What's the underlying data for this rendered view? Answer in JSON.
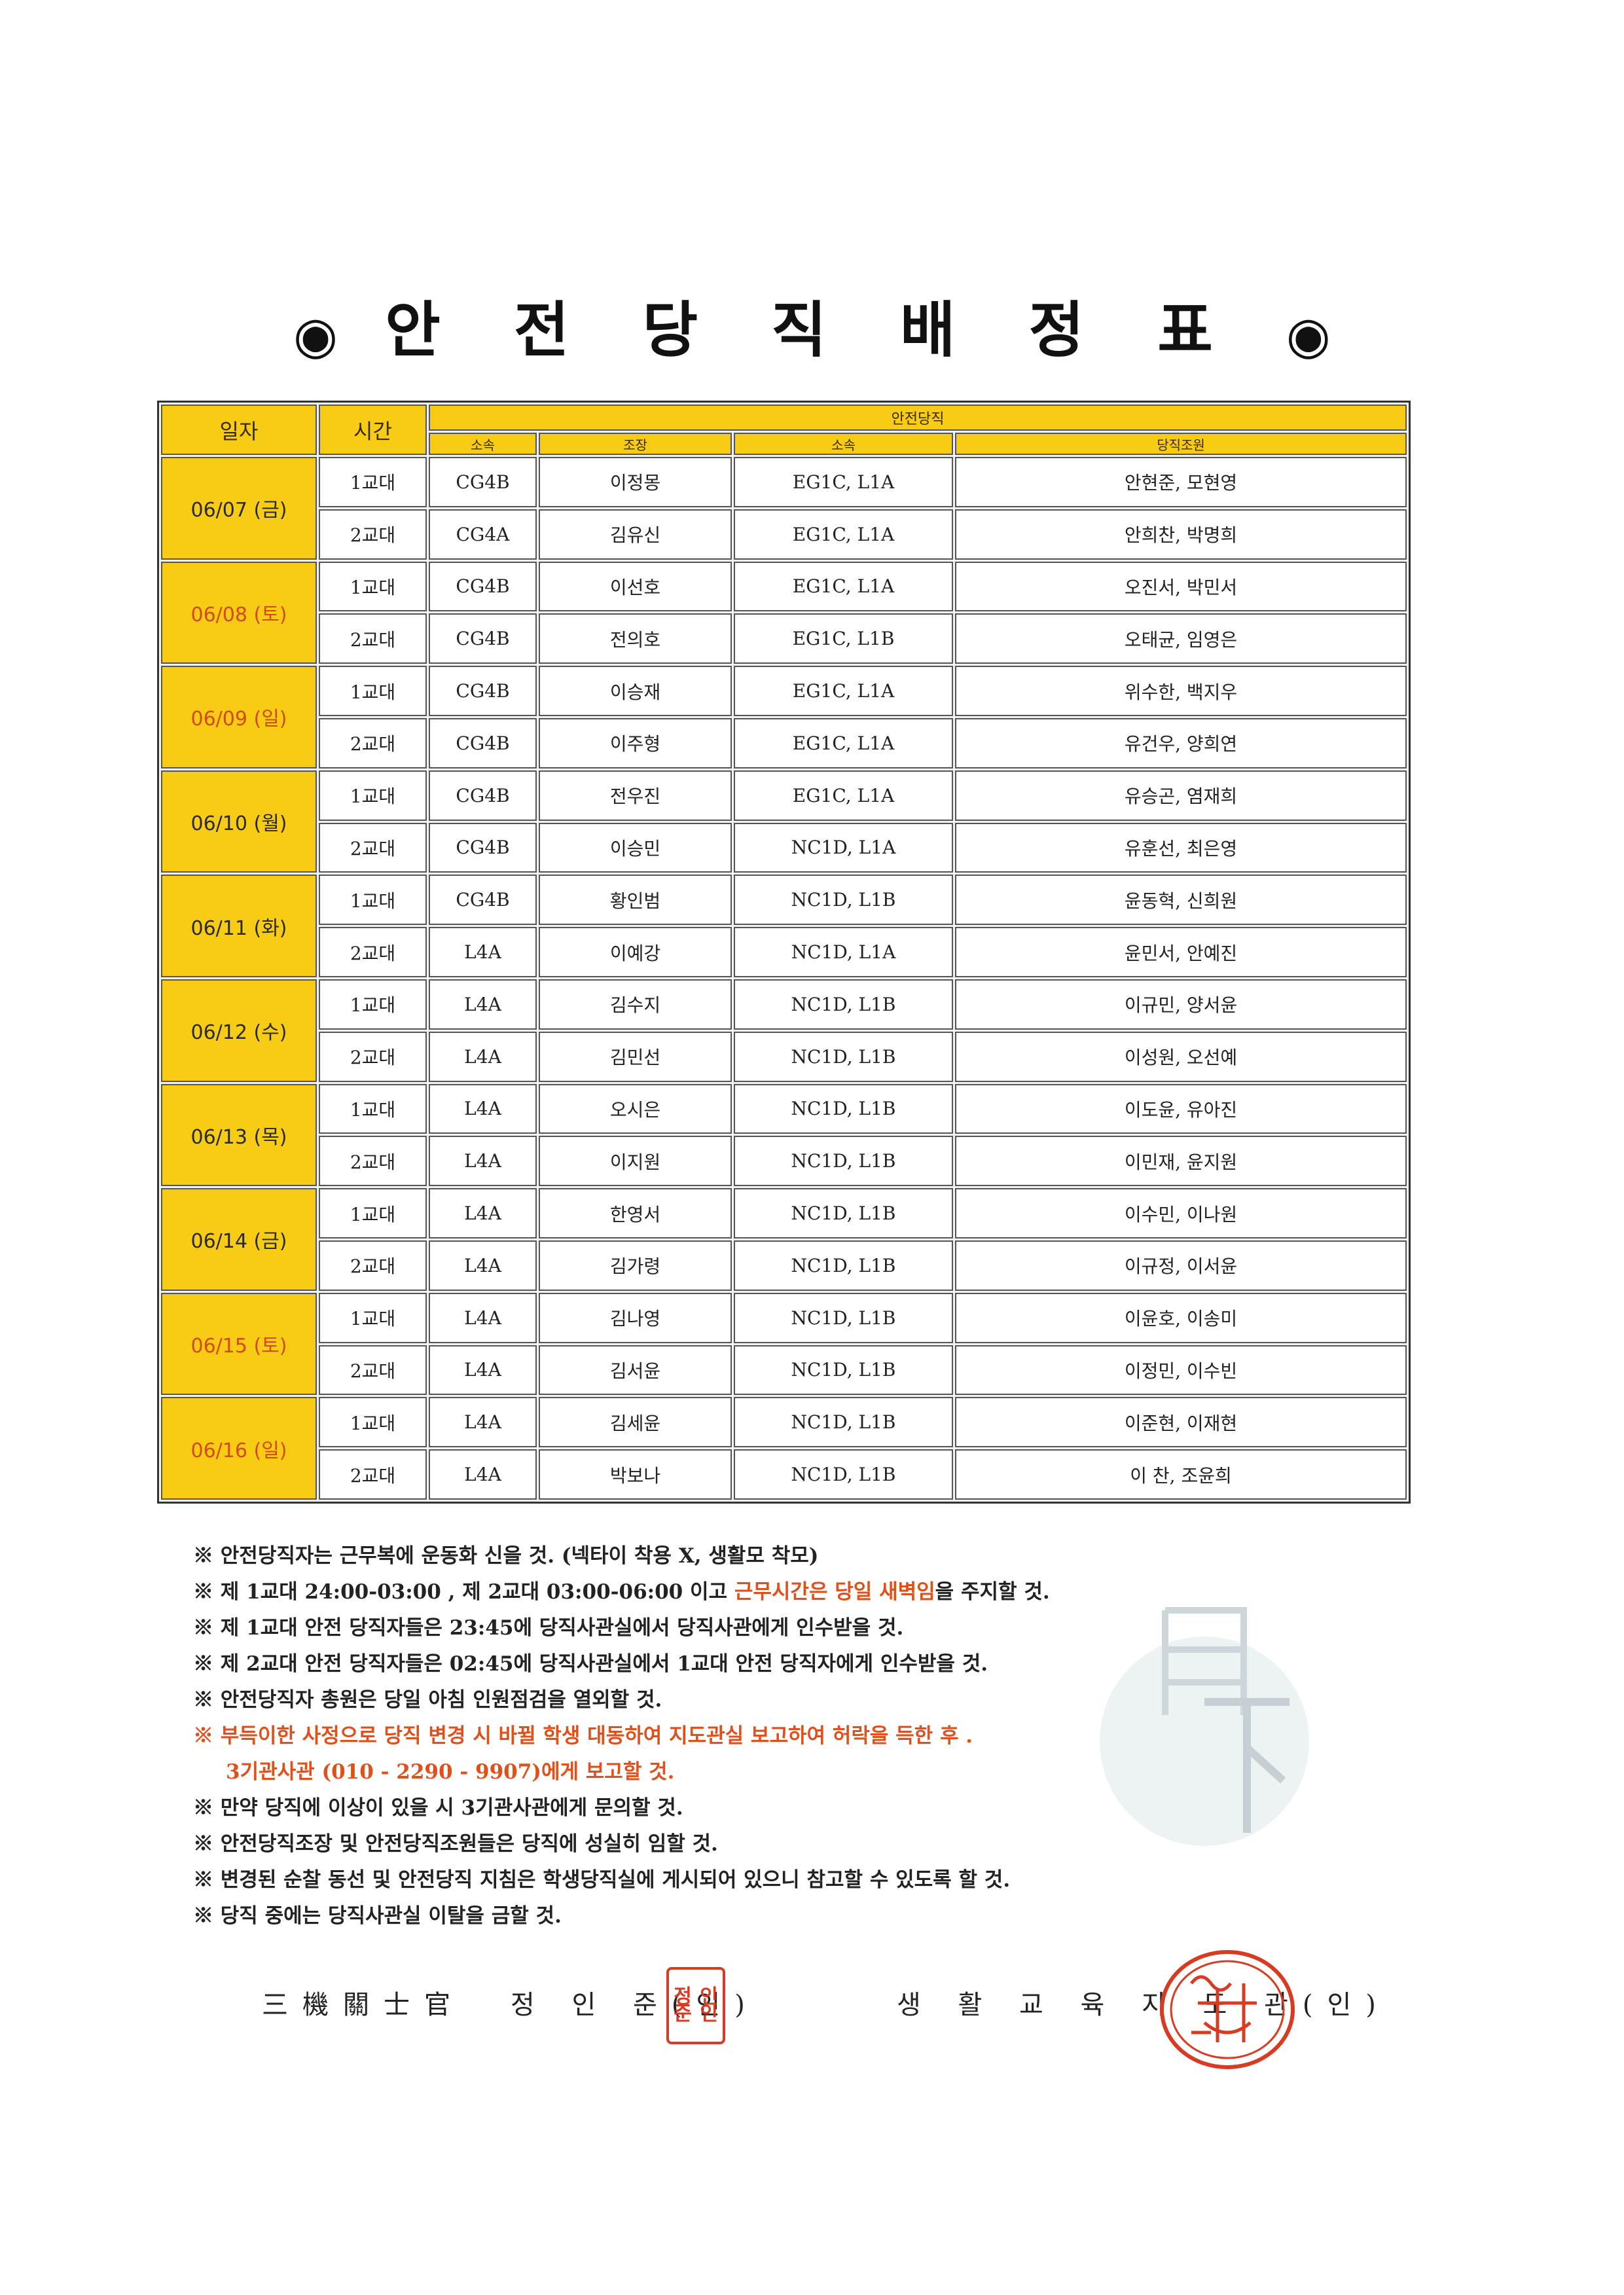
{
  "title": {
    "bullet": "◉",
    "text": "안 전 당 직 배 정 표"
  },
  "table": {
    "headers": {
      "date": "일자",
      "time": "시간",
      "group": "안전당직",
      "sub": [
        "소속",
        "조장",
        "소속",
        "당직조원"
      ]
    },
    "days": [
      {
        "date": "06/07 (금)",
        "red": false,
        "rows": [
          {
            "time": "1교대",
            "unit1": "CG4B",
            "leader": "이정몽",
            "unit2": "EG1C, L1A",
            "members": "안현준, 모현영"
          },
          {
            "time": "2교대",
            "unit1": "CG4A",
            "leader": "김유신",
            "unit2": "EG1C, L1A",
            "members": "안희찬, 박명희"
          }
        ]
      },
      {
        "date": "06/08 (토)",
        "red": true,
        "rows": [
          {
            "time": "1교대",
            "unit1": "CG4B",
            "leader": "이선호",
            "unit2": "EG1C, L1A",
            "members": "오진서, 박민서"
          },
          {
            "time": "2교대",
            "unit1": "CG4B",
            "leader": "전의호",
            "unit2": "EG1C, L1B",
            "members": "오태균, 임영은"
          }
        ]
      },
      {
        "date": "06/09 (일)",
        "red": true,
        "rows": [
          {
            "time": "1교대",
            "unit1": "CG4B",
            "leader": "이승재",
            "unit2": "EG1C, L1A",
            "members": "위수한, 백지우"
          },
          {
            "time": "2교대",
            "unit1": "CG4B",
            "leader": "이주형",
            "unit2": "EG1C, L1A",
            "members": "유건우, 양희연"
          }
        ]
      },
      {
        "date": "06/10 (월)",
        "red": false,
        "rows": [
          {
            "time": "1교대",
            "unit1": "CG4B",
            "leader": "전우진",
            "unit2": "EG1C, L1A",
            "members": "유승곤, 염재희"
          },
          {
            "time": "2교대",
            "unit1": "CG4B",
            "leader": "이승민",
            "unit2": "NC1D, L1A",
            "members": "유훈선, 최은영"
          }
        ]
      },
      {
        "date": "06/11 (화)",
        "red": false,
        "rows": [
          {
            "time": "1교대",
            "unit1": "CG4B",
            "leader": "황인범",
            "unit2": "NC1D, L1B",
            "members": "윤동혁, 신희원"
          },
          {
            "time": "2교대",
            "unit1": "L4A",
            "leader": "이예강",
            "unit2": "NC1D, L1A",
            "members": "윤민서, 안예진"
          }
        ]
      },
      {
        "date": "06/12 (수)",
        "red": false,
        "rows": [
          {
            "time": "1교대",
            "unit1": "L4A",
            "leader": "김수지",
            "unit2": "NC1D, L1B",
            "members": "이규민, 양서윤"
          },
          {
            "time": "2교대",
            "unit1": "L4A",
            "leader": "김민선",
            "unit2": "NC1D, L1B",
            "members": "이성원, 오선예"
          }
        ]
      },
      {
        "date": "06/13 (목)",
        "red": false,
        "rows": [
          {
            "time": "1교대",
            "unit1": "L4A",
            "leader": "오시은",
            "unit2": "NC1D, L1B",
            "members": "이도윤, 유아진"
          },
          {
            "time": "2교대",
            "unit1": "L4A",
            "leader": "이지원",
            "unit2": "NC1D, L1B",
            "members": "이민재, 윤지원"
          }
        ]
      },
      {
        "date": "06/14 (금)",
        "red": false,
        "rows": [
          {
            "time": "1교대",
            "unit1": "L4A",
            "leader": "한영서",
            "unit2": "NC1D, L1B",
            "members": "이수민, 이나원"
          },
          {
            "time": "2교대",
            "unit1": "L4A",
            "leader": "김가령",
            "unit2": "NC1D, L1B",
            "members": "이규정, 이서윤"
          }
        ]
      },
      {
        "date": "06/15 (토)",
        "red": true,
        "rows": [
          {
            "time": "1교대",
            "unit1": "L4A",
            "leader": "김나영",
            "unit2": "NC1D, L1B",
            "members": "이윤호, 이송미"
          },
          {
            "time": "2교대",
            "unit1": "L4A",
            "leader": "김서윤",
            "unit2": "NC1D, L1B",
            "members": "이정민, 이수빈"
          }
        ]
      },
      {
        "date": "06/16 (일)",
        "red": true,
        "rows": [
          {
            "time": "1교대",
            "unit1": "L4A",
            "leader": "김세윤",
            "unit2": "NC1D, L1B",
            "members": "이준현, 이재현"
          },
          {
            "time": "2교대",
            "unit1": "L4A",
            "leader": "박보나",
            "unit2": "NC1D, L1B",
            "members": "이 찬, 조윤희"
          }
        ]
      }
    ]
  },
  "notes": {
    "n1": "※ 안전당직자는 근무복에 운동화 신을 것. (넥타이 착용 X, 생활모 착모)",
    "n2_pre": "※ 제 1교대 24:00-03:00 , 제 2교대 03:00-06:00 이고 ",
    "n2_red": "근무시간은 당일 새벽임",
    "n2_post": "을 주지할 것.",
    "n3": "※ 제 1교대 안전 당직자들은 23:45에 당직사관실에서 당직사관에게 인수받을 것.",
    "n4": "※ 제 2교대 안전 당직자들은 02:45에 당직사관실에서 1교대 안전 당직자에게 인수받을 것.",
    "n5": "※ 안전당직자 총원은 당일 아침 인원점검을 열외할 것.",
    "n6": "※ 부득이한 사정으로 당직 변경 시 바뀔 학생 대동하여 지도관실 보고하여 허락을 득한 후 .",
    "n6b": "3기관사관 (010 - 2290 - 9907)에게 보고할 것.",
    "n7": "※ 만약 당직에 이상이 있을 시 3기관사관에게 문의할 것.",
    "n8": "※ 안전당직조장 및 안전당직조원들은 당직에 성실히 임할 것.",
    "n9": "※ 변경된 순찰 동선 및 안전당직 지침은 학생당직실에 게시되어 있으니 참고할 수 있도록 할 것.",
    "n10": "※ 당직 중에는 당직사관실 이탈을 금할 것."
  },
  "signatures": {
    "left_title": "三機關士官",
    "left_name": "정 인 준(인)",
    "left_seal": [
      "정",
      "인",
      "준",
      "인"
    ],
    "right_text": "생 활 교 육 지 도 관(인)"
  }
}
